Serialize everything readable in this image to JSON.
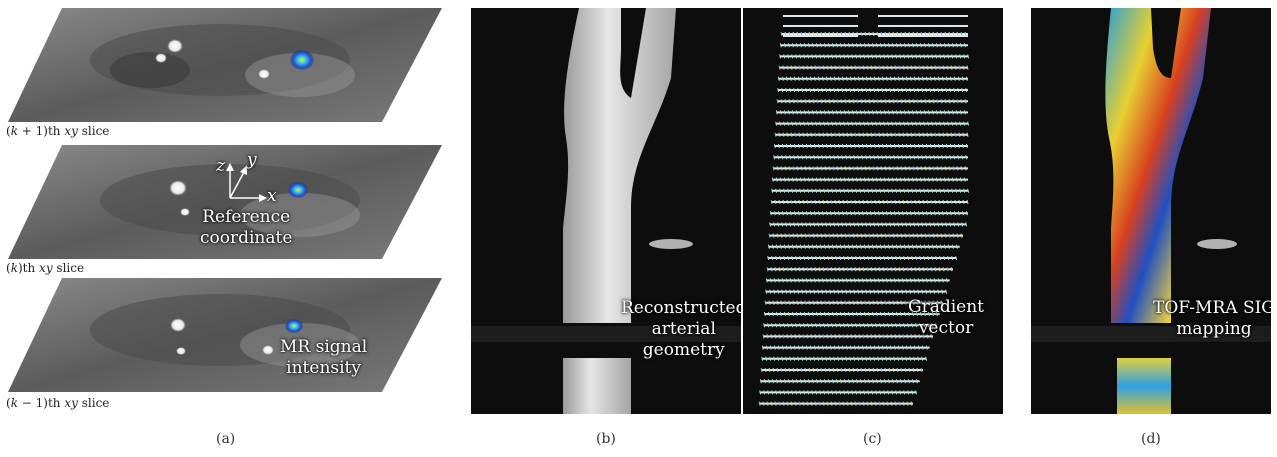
{
  "panel_a": {
    "slices": [
      {
        "k": "k",
        "offset": " + 1",
        "suffix": "th",
        "plane": "xy",
        "word": "slice"
      },
      {
        "k": "k",
        "offset": "",
        "suffix": "th",
        "plane": "xy",
        "word": "slice"
      },
      {
        "k": "k",
        "offset": " − 1",
        "suffix": "th",
        "plane": "xy",
        "word": "slice"
      }
    ],
    "axes": {
      "z": "z",
      "y": "y",
      "x": "x"
    },
    "reference_label": [
      "Reference",
      "coordinate"
    ],
    "signal_label": [
      "MR signal",
      "intensity"
    ]
  },
  "panel_b": {
    "label": [
      "Reconstructed",
      "arterial",
      "geometry"
    ]
  },
  "panel_c": {
    "label": [
      "Gradient",
      "vector"
    ]
  },
  "panel_d": {
    "label": [
      "TOF-MRA SIG",
      "mapping"
    ]
  },
  "panel_labels": [
    "(a)",
    "(b)",
    "(c)",
    "(d)"
  ],
  "colors": {
    "background": "#0d0d0d",
    "vessel": "#d8d8d8",
    "slice_gray": "#6e6e6e"
  }
}
